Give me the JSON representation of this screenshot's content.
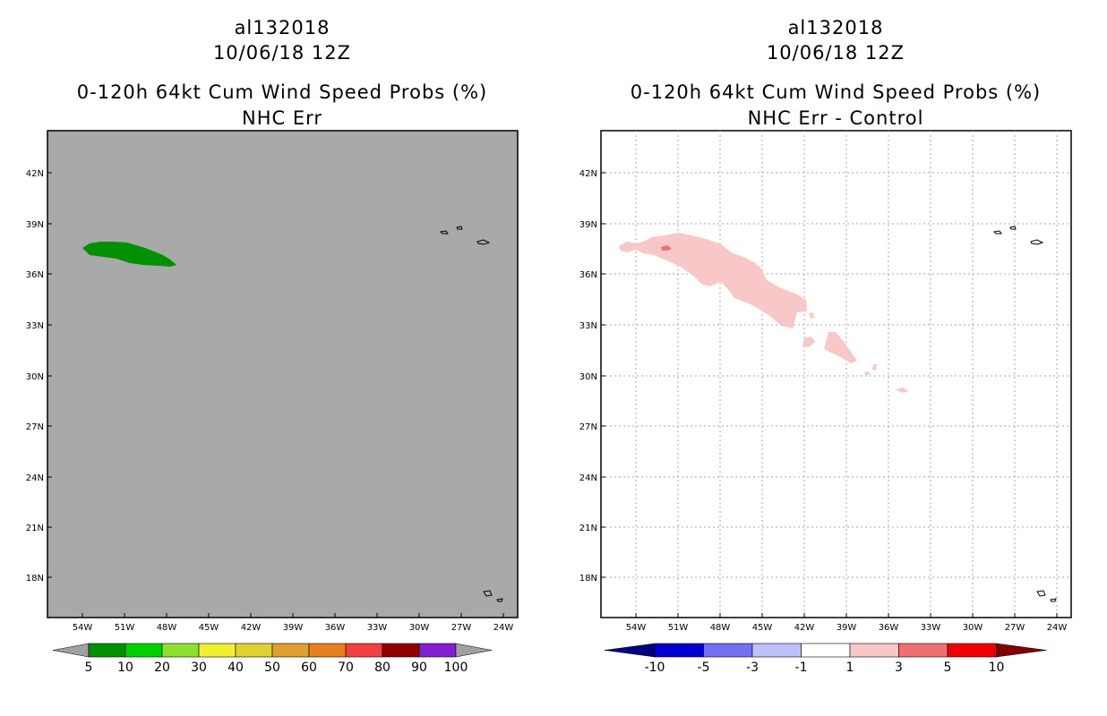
{
  "panels": [
    {
      "storm_id": "al132018",
      "datetime": "10/06/18 12Z",
      "product": "0-120h 64kt Cum Wind Speed Probs (%)",
      "subtitle": "NHC Err",
      "background": "#a9a9a9",
      "gridlines": false,
      "colorbar": {
        "colors": [
          "#009000",
          "#00d000",
          "#90e030",
          "#f0f030",
          "#e0d030",
          "#e0a030",
          "#e88020",
          "#f04040",
          "#900000",
          "#8020d0"
        ],
        "labels": [
          "5",
          "10",
          "20",
          "30",
          "40",
          "50",
          "60",
          "70",
          "80",
          "90",
          "100"
        ],
        "under_color": "#a0a0a0",
        "over_color": "#a0a0a0"
      }
    },
    {
      "storm_id": "al132018",
      "datetime": "10/06/18 12Z",
      "product": "0-120h 64kt Cum Wind Speed Probs (%)",
      "subtitle": "NHC Err - Control",
      "background": "#ffffff",
      "gridlines": true,
      "colorbar": {
        "colors": [
          "#0000d0",
          "#7070f0",
          "#c0c0f8",
          "#ffffff",
          "#f8c8c8",
          "#f07070",
          "#f00000"
        ],
        "labels": [
          "-10",
          "-5",
          "-3",
          "-1",
          "1",
          "3",
          "5",
          "10"
        ],
        "under_color": "#000080",
        "over_color": "#800000"
      }
    }
  ],
  "axes": {
    "lon_ticks": [
      "54W",
      "51W",
      "48W",
      "45W",
      "42W",
      "39W",
      "36W",
      "33W",
      "30W",
      "27W",
      "24W"
    ],
    "lat_ticks": [
      "42N",
      "39N",
      "36N",
      "33N",
      "30N",
      "27N",
      "24N",
      "21N",
      "18N"
    ]
  },
  "map_data": {
    "lon_range": [
      -56.5,
      -22.5
    ],
    "lat_range": [
      15.9,
      44.9
    ],
    "features": {
      "azores": "Azores islands (outline)",
      "cape_verde": "Cape Verde islands (outline)",
      "nhc_err_prob_region": {
        "fill": "#009000",
        "category": "5-10%"
      },
      "diff_region": {
        "fill": "#f8c8c8",
        "category": "1-3%"
      },
      "diff_core": {
        "fill": "#f07070",
        "category": "3-5%"
      }
    }
  }
}
